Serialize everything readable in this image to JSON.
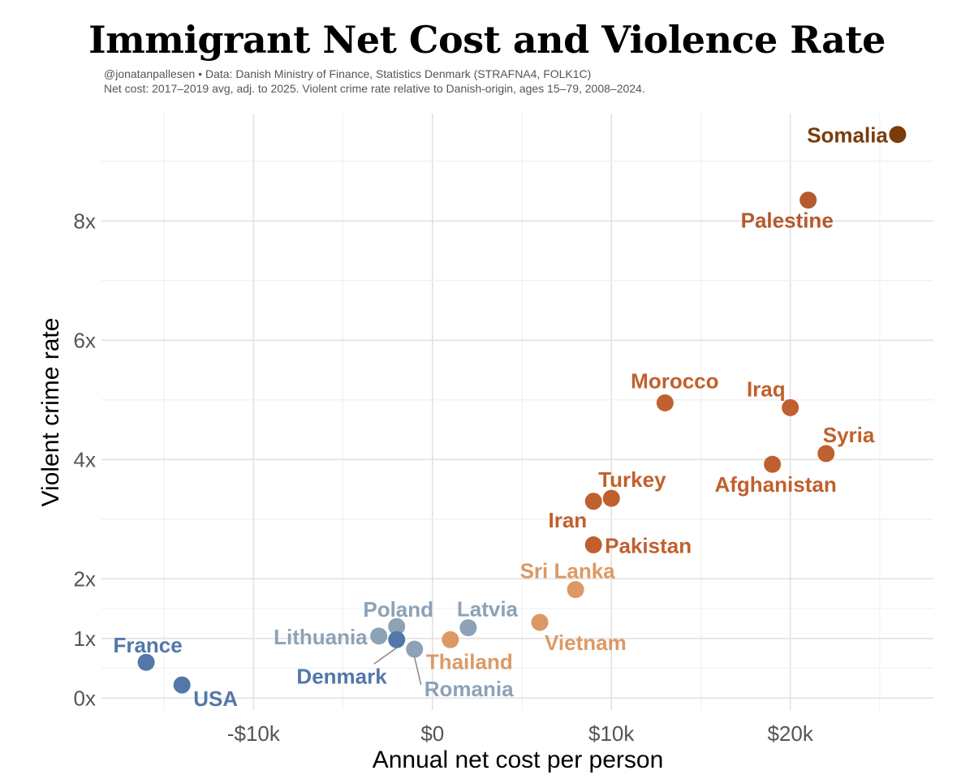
{
  "chart_data": {
    "type": "scatter",
    "title": "Immigrant Net Cost and Violence Rate",
    "subtitle_line1": "@jonatanpallesen • Data: Danish Ministry of Finance, Statistics Denmark (STRAFNA4, FOLK1C)",
    "subtitle_line2": "Net cost: 2017–2019 avg, adj. to 2025. Violent crime rate relative to Danish-origin, ages 15–79, 2008–2024.",
    "xlabel": "Annual net cost per person",
    "ylabel": "Violent crime rate",
    "xlim": [
      -18500,
      28000
    ],
    "ylim": [
      -0.2,
      9.8
    ],
    "x_ticks": [
      {
        "value": -10000,
        "label": "-$10k"
      },
      {
        "value": 0,
        "label": "$0"
      },
      {
        "value": 10000,
        "label": "$10k"
      },
      {
        "value": 20000,
        "label": "$20k"
      }
    ],
    "y_ticks": [
      {
        "value": 0,
        "label": "0x"
      },
      {
        "value": 1,
        "label": "1x"
      },
      {
        "value": 2,
        "label": "2x"
      },
      {
        "value": 4,
        "label": "4x"
      },
      {
        "value": 6,
        "label": "6x"
      },
      {
        "value": 8,
        "label": "8x"
      }
    ],
    "points": [
      {
        "name": "Somalia",
        "x": 26000,
        "y": 9.45,
        "color": "#7a3c0a",
        "label_pos": "left"
      },
      {
        "name": "Palestine",
        "x": 21000,
        "y": 8.35,
        "color": "#b45a2c",
        "label_pos": "below-left"
      },
      {
        "name": "Morocco",
        "x": 13000,
        "y": 4.95,
        "color": "#c0602e",
        "label_pos": "above"
      },
      {
        "name": "Iraq",
        "x": 20000,
        "y": 4.87,
        "color": "#c0602e",
        "label_pos": "above-left"
      },
      {
        "name": "Syria",
        "x": 22000,
        "y": 4.1,
        "color": "#c0602e",
        "label_pos": "above-right"
      },
      {
        "name": "Afghanistan",
        "x": 19000,
        "y": 3.92,
        "color": "#c0602e",
        "label_pos": "below"
      },
      {
        "name": "Turkey",
        "x": 10000,
        "y": 3.35,
        "color": "#c0602e",
        "label_pos": "above-right"
      },
      {
        "name": "Iran",
        "x": 9000,
        "y": 3.3,
        "color": "#c0602e",
        "label_pos": "below-left"
      },
      {
        "name": "Pakistan",
        "x": 9000,
        "y": 2.57,
        "color": "#c0602e",
        "label_pos": "right"
      },
      {
        "name": "Sri Lanka",
        "x": 8000,
        "y": 1.82,
        "color": "#dc9965",
        "label_pos": "above"
      },
      {
        "name": "Vietnam",
        "x": 6000,
        "y": 1.27,
        "color": "#dc9965",
        "label_pos": "below-right"
      },
      {
        "name": "Thailand",
        "x": 1000,
        "y": 0.98,
        "color": "#dc9965",
        "label_pos": "below-right"
      },
      {
        "name": "Latvia",
        "x": 2000,
        "y": 1.18,
        "color": "#8da2b6",
        "label_pos": "above-right"
      },
      {
        "name": "Poland",
        "x": -2000,
        "y": 1.2,
        "color": "#8da2b6",
        "label_pos": "above"
      },
      {
        "name": "Lithuania",
        "x": -3000,
        "y": 1.04,
        "color": "#8da2b6",
        "label_pos": "left"
      },
      {
        "name": "Romania",
        "x": -1000,
        "y": 0.82,
        "color": "#8da2b6",
        "label_pos": "below-right"
      },
      {
        "name": "Denmark",
        "x": -2000,
        "y": 0.98,
        "color": "#5377a8",
        "label_pos": "below-left"
      },
      {
        "name": "France",
        "x": -16000,
        "y": 0.6,
        "color": "#5377a8",
        "label_pos": "above"
      },
      {
        "name": "USA",
        "x": -14000,
        "y": 0.22,
        "color": "#5377a8",
        "label_pos": "below-right"
      }
    ]
  }
}
